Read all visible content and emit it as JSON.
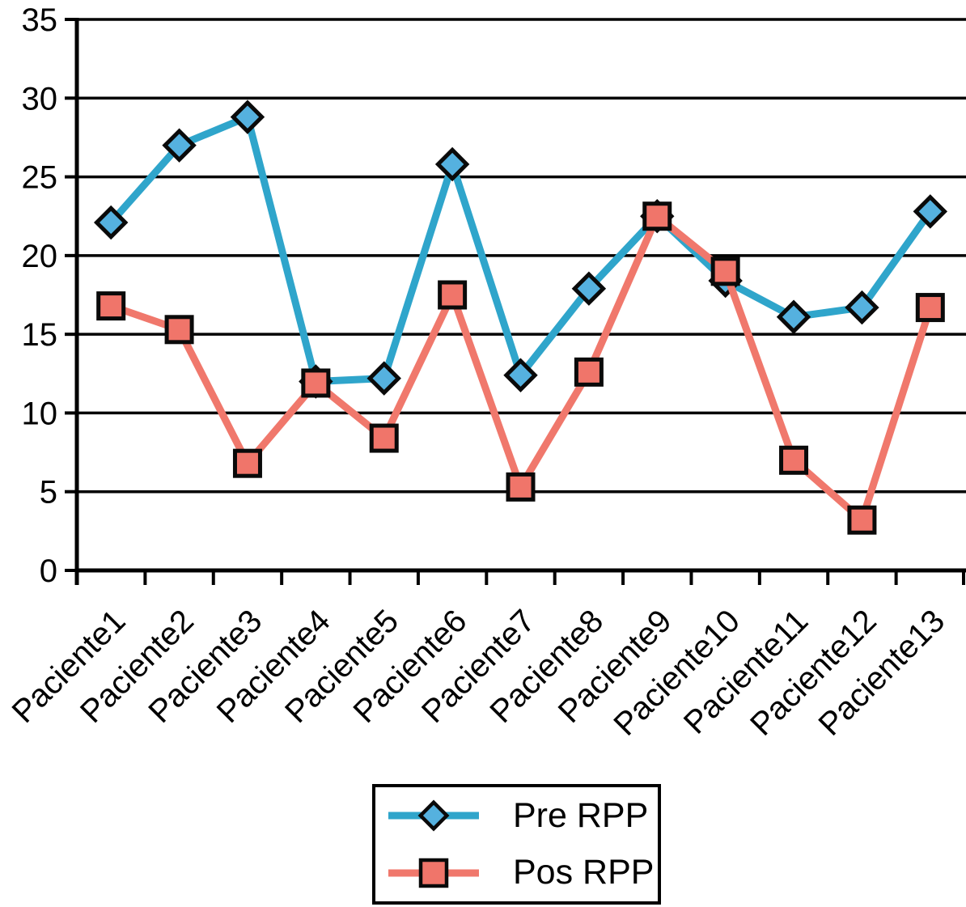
{
  "chart_data": {
    "type": "line",
    "title": "",
    "categories": [
      "Paciente1",
      "Paciente2",
      "Paciente3",
      "Paciente4",
      "Paciente5",
      "Paciente6",
      "Paciente7",
      "Paciente8",
      "Paciente9",
      "Paciente10",
      "Paciente11",
      "Paciente12",
      "Paciente13"
    ],
    "series": [
      {
        "name": "Pre RPP",
        "marker": "diamond",
        "line_color": "#2FA5CB",
        "marker_fill": "#55B1DF",
        "values": [
          22.1,
          27.0,
          28.8,
          12.0,
          12.2,
          25.8,
          12.4,
          17.9,
          22.5,
          18.4,
          16.1,
          16.7,
          22.8
        ]
      },
      {
        "name": "Pos RPP",
        "marker": "square",
        "line_color": "#F0786C",
        "marker_fill": "#F0756A",
        "values": [
          16.8,
          15.3,
          6.8,
          11.9,
          8.4,
          17.5,
          5.3,
          12.6,
          22.5,
          19.0,
          7.0,
          3.2,
          16.7
        ]
      }
    ],
    "ylim": [
      0,
      35
    ],
    "yticks": [
      0,
      5,
      10,
      15,
      20,
      25,
      30,
      35
    ],
    "xlabel": "",
    "ylabel": "",
    "grid": true,
    "axis_color": "#000000",
    "marker_outline": "#0a0a0a",
    "legend_position": "bottom-center"
  }
}
